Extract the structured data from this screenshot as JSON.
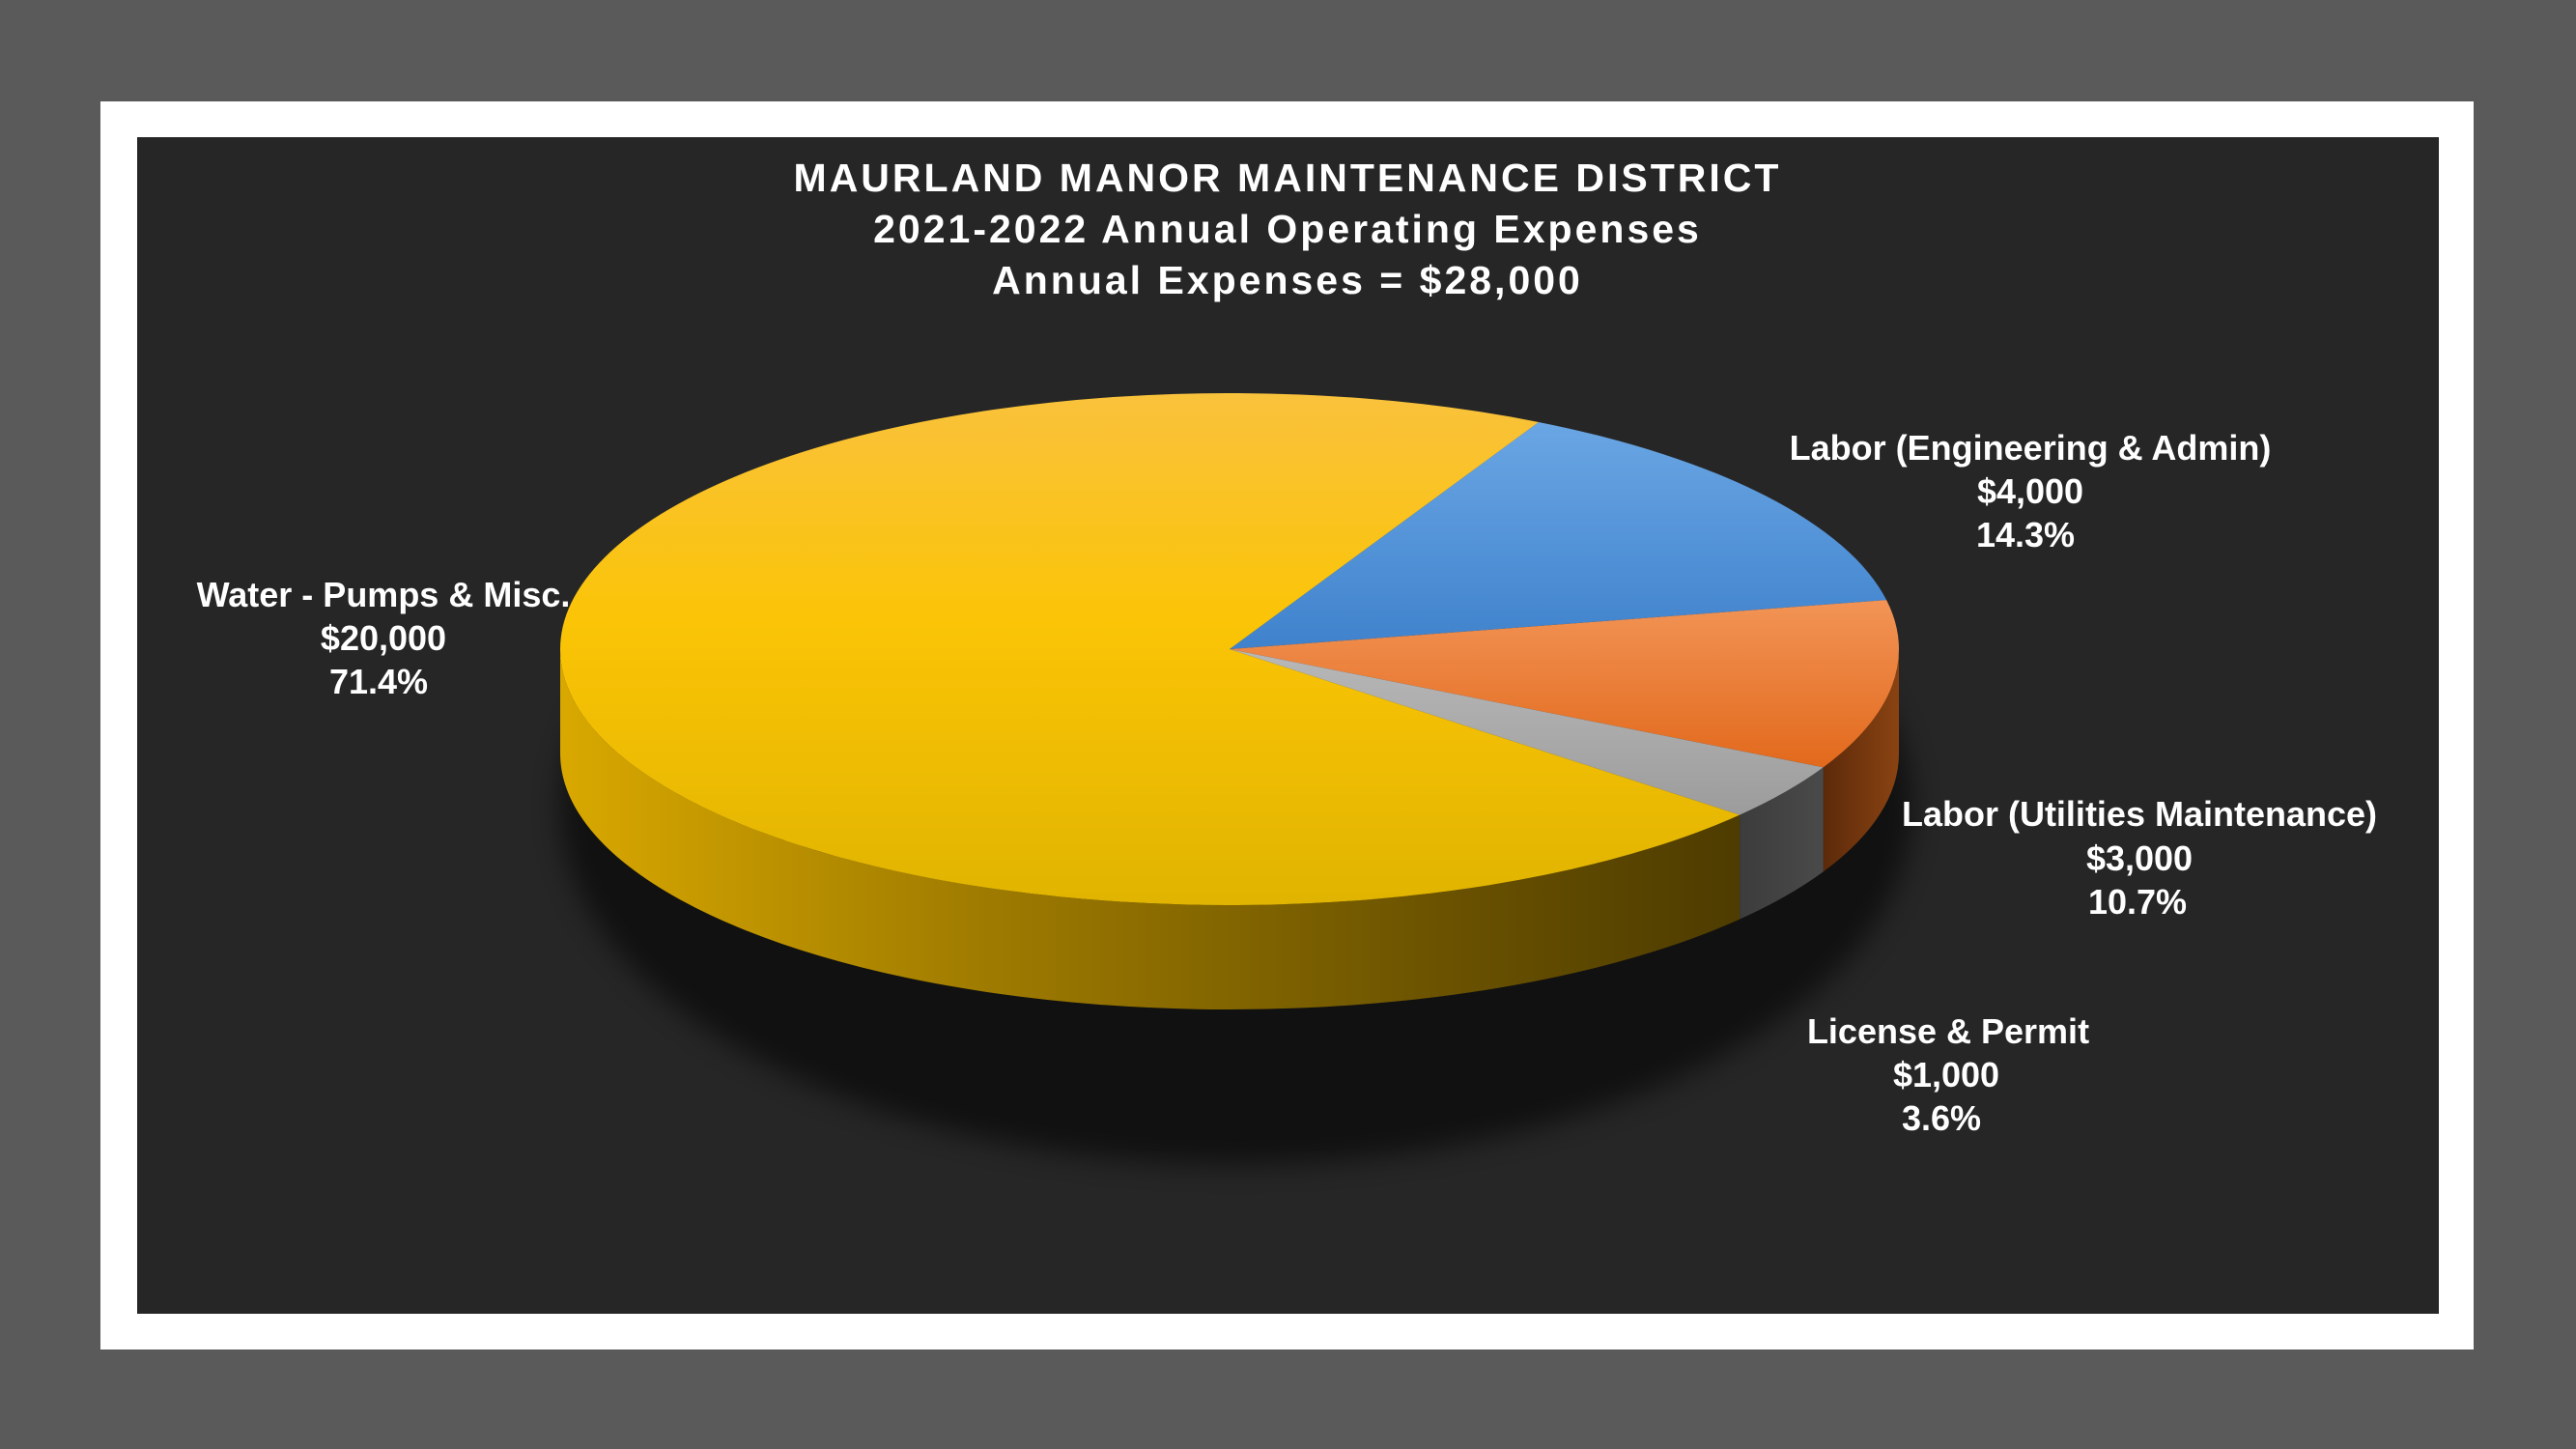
{
  "chart_data": {
    "type": "pie",
    "title": [
      "MAURLAND MANOR MAINTENANCE DISTRICT",
      "2021-2022 Annual Operating Expenses",
      "Annual Expenses = $28,000"
    ],
    "total": 28000,
    "slices": [
      {
        "label": "Labor (Engineering & Admin)",
        "value": 4000,
        "value_text": "$4,000",
        "percent": 14.3,
        "percent_text": "14.3%",
        "color": "#4e8fd4"
      },
      {
        "label": "Labor (Utilities Maintenance)",
        "value": 3000,
        "value_text": "$3,000",
        "percent": 10.7,
        "percent_text": "10.7%",
        "color": "#ed7d31"
      },
      {
        "label": "License & Permit",
        "value": 1000,
        "value_text": "$1,000",
        "percent": 3.6,
        "percent_text": "3.6%",
        "color": "#a5a5a5"
      },
      {
        "label": "Water - Pumps & Misc.",
        "value": 20000,
        "value_text": "$20,000",
        "percent": 71.4,
        "percent_text": "71.4%",
        "color": "#fdc113"
      }
    ],
    "three_d": true,
    "legend": "none"
  },
  "colors": {
    "page_background": "#5a5a5a",
    "frame": "#ffffff",
    "panel": "#262626",
    "text": "#ffffff"
  }
}
